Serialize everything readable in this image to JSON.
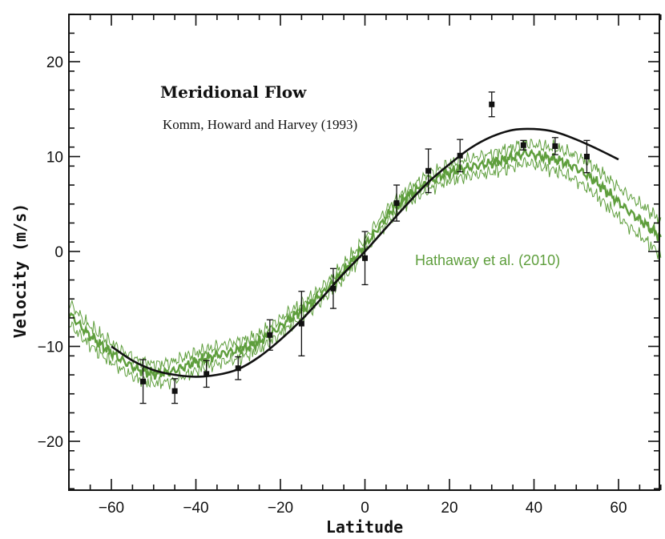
{
  "chart_data": {
    "type": "line",
    "title": "Meridional Flow",
    "subtitle": "Komm, Howard and Harvey (1993)",
    "green_label": "Hathaway et al. (2010)",
    "xlabel": "Latitude",
    "ylabel": "Velocity  (m/s)",
    "xlim": [
      -70,
      70
    ],
    "ylim": [
      -25,
      25
    ],
    "xticks": [
      -60,
      -40,
      -20,
      0,
      20,
      40,
      60
    ],
    "xtick_labels": [
      "−60",
      "−40",
      "−20",
      "0",
      "20",
      "40",
      "60"
    ],
    "yticks": [
      -20,
      -10,
      0,
      10,
      20
    ],
    "ytick_labels": [
      "−20",
      "−10",
      "0",
      "10",
      "20"
    ],
    "colors": {
      "green": "#5e9e3c",
      "black": "#111111"
    },
    "series": [
      {
        "name": "Komm, Howard and Harvey (1993) measurements",
        "kind": "points_with_error",
        "x": [
          -52.5,
          -45,
          -37.5,
          -30,
          -22.5,
          -15,
          -7.5,
          0,
          7.5,
          15,
          22.5,
          30,
          37.5,
          45,
          52.5
        ],
        "y": [
          -13.7,
          -14.7,
          -12.9,
          -12.3,
          -8.8,
          -7.6,
          -3.9,
          -0.7,
          5.1,
          8.5,
          10.1,
          15.5,
          11.2,
          11.1,
          10.0
        ],
        "err": [
          2.3,
          1.3,
          1.4,
          1.2,
          1.6,
          3.4,
          2.1,
          2.8,
          1.9,
          2.3,
          1.7,
          1.3,
          0.5,
          0.9,
          1.7
        ]
      },
      {
        "name": "Komm, Howard and Harvey (1993) fit",
        "kind": "line",
        "x": [
          -60,
          -55,
          -50,
          -45,
          -40,
          -35,
          -30,
          -25,
          -20,
          -15,
          -10,
          -5,
          0,
          5,
          10,
          15,
          20,
          25,
          30,
          35,
          40,
          45,
          50,
          55,
          60
        ],
        "y": [
          -10.0,
          -11.5,
          -12.5,
          -13.0,
          -13.2,
          -13.0,
          -12.4,
          -11.1,
          -9.3,
          -7.2,
          -4.8,
          -2.3,
          0.0,
          2.5,
          5.0,
          7.3,
          9.2,
          10.9,
          12.1,
          12.8,
          12.9,
          12.6,
          11.8,
          10.8,
          9.7
        ]
      },
      {
        "name": "Hathaway et al. (2010)",
        "kind": "band_line",
        "x": [
          -70,
          -66,
          -62,
          -58,
          -54,
          -50,
          -46,
          -42,
          -38,
          -34,
          -30,
          -26,
          -22,
          -18,
          -14,
          -10,
          -6,
          -2,
          2,
          6,
          10,
          14,
          18,
          22,
          26,
          30,
          34,
          38,
          42,
          46,
          50,
          54,
          58,
          62,
          66,
          70
        ],
        "y": [
          -6.5,
          -8.5,
          -10.0,
          -11.3,
          -12.4,
          -12.9,
          -12.7,
          -12.0,
          -11.3,
          -10.8,
          -10.4,
          -9.8,
          -8.6,
          -7.2,
          -5.9,
          -4.4,
          -2.6,
          -0.5,
          1.8,
          4.2,
          5.8,
          7.0,
          8.0,
          8.6,
          9.0,
          9.3,
          9.8,
          10.4,
          10.0,
          9.6,
          8.8,
          7.6,
          6.0,
          4.4,
          3.0,
          1.5
        ],
        "band": [
          1.1,
          1.0,
          1.0,
          1.0,
          1.0,
          1.0,
          1.0,
          1.0,
          0.9,
          0.9,
          0.9,
          0.8,
          0.8,
          0.8,
          0.7,
          0.7,
          0.7,
          0.7,
          0.7,
          0.7,
          0.7,
          0.8,
          0.8,
          0.9,
          0.9,
          1.0,
          1.0,
          1.0,
          1.1,
          1.2,
          1.3,
          1.4,
          1.5,
          1.6,
          1.7,
          1.8
        ]
      }
    ],
    "grid": false
  }
}
